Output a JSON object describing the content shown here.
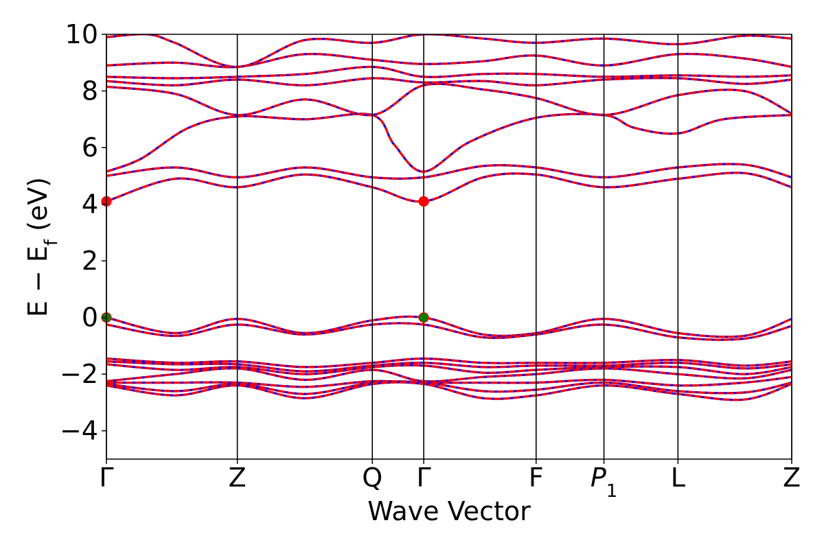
{
  "chart_data": {
    "type": "line",
    "title": "",
    "xlabel": "Wave Vector",
    "ylabel": "E − E_f (eV)",
    "ylabel_parts": {
      "pre": "E − E",
      "sub": "f",
      "post": " (eV)"
    },
    "ylim": [
      -5,
      10
    ],
    "yticks": [
      -4,
      -2,
      0,
      2,
      4,
      6,
      8,
      10
    ],
    "ytick_labels": [
      "−4",
      "−2",
      "0",
      "2",
      "4",
      "6",
      "8",
      "10"
    ],
    "xlim": [
      0,
      1
    ],
    "grid": false,
    "kpoints": [
      {
        "label": "Γ",
        "x": 0.0
      },
      {
        "label": "Z",
        "x": 0.191
      },
      {
        "label": "Q",
        "x": 0.388
      },
      {
        "label": "Γ",
        "x": 0.463
      },
      {
        "label": "F",
        "x": 0.627
      },
      {
        "label": "P",
        "sub": "1",
        "italic": true,
        "x": 0.726
      },
      {
        "label": "L",
        "x": 0.834
      },
      {
        "label": "Z",
        "x": 1.0
      }
    ],
    "colors": {
      "overlay": "#ff0000",
      "base": "#0000ff",
      "vbm_marker": "#008000",
      "cbm_marker": "#ff0000",
      "kline": "#000000"
    },
    "series": [
      {
        "values": [
          [
            0,
            4.1
          ],
          [
            0.1,
            4.9
          ],
          [
            0.191,
            4.6
          ],
          [
            0.29,
            5.05
          ],
          [
            0.388,
            4.6
          ],
          [
            0.463,
            4.1
          ],
          [
            0.55,
            4.95
          ],
          [
            0.627,
            5.05
          ],
          [
            0.726,
            4.6
          ],
          [
            0.834,
            4.9
          ],
          [
            0.93,
            5.1
          ],
          [
            1.0,
            4.6
          ]
        ]
      },
      {
        "values": [
          [
            0,
            5.0
          ],
          [
            0.1,
            5.3
          ],
          [
            0.191,
            4.95
          ],
          [
            0.29,
            5.3
          ],
          [
            0.388,
            4.95
          ],
          [
            0.463,
            4.95
          ],
          [
            0.55,
            5.35
          ],
          [
            0.627,
            5.3
          ],
          [
            0.726,
            4.95
          ],
          [
            0.834,
            5.3
          ],
          [
            0.93,
            5.4
          ],
          [
            1.0,
            4.95
          ]
        ]
      },
      {
        "values": [
          [
            0,
            5.15
          ],
          [
            0.05,
            5.6
          ],
          [
            0.12,
            6.7
          ],
          [
            0.191,
            7.1
          ],
          [
            0.29,
            7.0
          ],
          [
            0.388,
            7.15
          ],
          [
            0.42,
            6.1
          ],
          [
            0.463,
            5.15
          ],
          [
            0.53,
            6.2
          ],
          [
            0.627,
            7.05
          ],
          [
            0.726,
            7.15
          ],
          [
            0.77,
            6.7
          ],
          [
            0.834,
            6.5
          ],
          [
            0.9,
            7.0
          ],
          [
            1.0,
            7.15
          ]
        ]
      },
      {
        "values": [
          [
            0,
            8.15
          ],
          [
            0.1,
            7.9
          ],
          [
            0.191,
            7.15
          ],
          [
            0.29,
            7.7
          ],
          [
            0.388,
            7.15
          ],
          [
            0.463,
            8.2
          ],
          [
            0.55,
            8.05
          ],
          [
            0.627,
            7.75
          ],
          [
            0.726,
            7.15
          ],
          [
            0.834,
            7.85
          ],
          [
            0.93,
            8.0
          ],
          [
            1.0,
            7.2
          ]
        ]
      },
      {
        "values": [
          [
            0,
            8.35
          ],
          [
            0.1,
            8.2
          ],
          [
            0.191,
            8.4
          ],
          [
            0.29,
            8.2
          ],
          [
            0.388,
            8.45
          ],
          [
            0.463,
            8.3
          ],
          [
            0.55,
            8.35
          ],
          [
            0.627,
            8.2
          ],
          [
            0.726,
            8.4
          ],
          [
            0.834,
            8.45
          ],
          [
            0.93,
            8.25
          ],
          [
            1.0,
            8.4
          ]
        ]
      },
      {
        "values": [
          [
            0,
            8.5
          ],
          [
            0.1,
            8.45
          ],
          [
            0.191,
            8.5
          ],
          [
            0.29,
            8.6
          ],
          [
            0.388,
            8.85
          ],
          [
            0.463,
            8.5
          ],
          [
            0.55,
            8.6
          ],
          [
            0.627,
            8.6
          ],
          [
            0.726,
            8.5
          ],
          [
            0.834,
            8.55
          ],
          [
            0.93,
            8.5
          ],
          [
            1.0,
            8.55
          ]
        ]
      },
      {
        "values": [
          [
            0,
            8.9
          ],
          [
            0.1,
            9.0
          ],
          [
            0.191,
            8.85
          ],
          [
            0.29,
            9.3
          ],
          [
            0.388,
            9.1
          ],
          [
            0.463,
            8.95
          ],
          [
            0.55,
            9.05
          ],
          [
            0.627,
            9.25
          ],
          [
            0.726,
            8.9
          ],
          [
            0.834,
            9.3
          ],
          [
            0.93,
            9.15
          ],
          [
            1.0,
            8.85
          ]
        ]
      },
      {
        "values": [
          [
            0,
            9.9
          ],
          [
            0.06,
            10.0
          ],
          [
            0.1,
            9.7
          ],
          [
            0.191,
            8.85
          ],
          [
            0.29,
            9.8
          ],
          [
            0.388,
            9.7
          ],
          [
            0.463,
            10.0
          ],
          [
            0.55,
            9.85
          ],
          [
            0.627,
            9.7
          ],
          [
            0.726,
            9.85
          ],
          [
            0.834,
            9.65
          ],
          [
            0.93,
            9.95
          ],
          [
            1.0,
            9.85
          ]
        ]
      },
      {
        "values": [
          [
            0,
            0.0
          ],
          [
            0.1,
            -0.55
          ],
          [
            0.191,
            -0.05
          ],
          [
            0.29,
            -0.55
          ],
          [
            0.388,
            -0.1
          ],
          [
            0.463,
            0.0
          ],
          [
            0.55,
            -0.6
          ],
          [
            0.627,
            -0.55
          ],
          [
            0.726,
            -0.05
          ],
          [
            0.834,
            -0.55
          ],
          [
            0.93,
            -0.65
          ],
          [
            1.0,
            -0.05
          ]
        ]
      },
      {
        "values": [
          [
            0,
            -0.25
          ],
          [
            0.1,
            -0.65
          ],
          [
            0.191,
            -0.25
          ],
          [
            0.29,
            -0.6
          ],
          [
            0.388,
            -0.25
          ],
          [
            0.463,
            -0.25
          ],
          [
            0.55,
            -0.7
          ],
          [
            0.627,
            -0.6
          ],
          [
            0.726,
            -0.25
          ],
          [
            0.834,
            -0.7
          ],
          [
            0.93,
            -0.75
          ],
          [
            1.0,
            -0.3
          ]
        ]
      },
      {
        "values": [
          [
            0,
            -1.45
          ],
          [
            0.1,
            -1.6
          ],
          [
            0.191,
            -1.55
          ],
          [
            0.29,
            -1.75
          ],
          [
            0.388,
            -1.6
          ],
          [
            0.463,
            -1.45
          ],
          [
            0.55,
            -1.6
          ],
          [
            0.627,
            -1.6
          ],
          [
            0.726,
            -1.6
          ],
          [
            0.834,
            -1.5
          ],
          [
            0.93,
            -1.7
          ],
          [
            1.0,
            -1.55
          ]
        ]
      },
      {
        "values": [
          [
            0,
            -1.55
          ],
          [
            0.1,
            -1.65
          ],
          [
            0.191,
            -1.65
          ],
          [
            0.29,
            -1.9
          ],
          [
            0.388,
            -1.7
          ],
          [
            0.463,
            -1.6
          ],
          [
            0.55,
            -1.75
          ],
          [
            0.627,
            -1.7
          ],
          [
            0.726,
            -1.7
          ],
          [
            0.834,
            -1.6
          ],
          [
            0.93,
            -1.8
          ],
          [
            1.0,
            -1.65
          ]
        ]
      },
      {
        "values": [
          [
            0,
            -1.65
          ],
          [
            0.1,
            -1.85
          ],
          [
            0.191,
            -1.75
          ],
          [
            0.29,
            -2.0
          ],
          [
            0.388,
            -1.75
          ],
          [
            0.463,
            -1.7
          ],
          [
            0.55,
            -1.95
          ],
          [
            0.627,
            -1.85
          ],
          [
            0.726,
            -1.75
          ],
          [
            0.834,
            -1.75
          ],
          [
            0.93,
            -2.0
          ],
          [
            1.0,
            -1.75
          ]
        ]
      },
      {
        "values": [
          [
            0,
            -2.25
          ],
          [
            0.1,
            -2.0
          ],
          [
            0.191,
            -1.8
          ],
          [
            0.29,
            -2.2
          ],
          [
            0.388,
            -1.85
          ],
          [
            0.463,
            -2.25
          ],
          [
            0.55,
            -2.1
          ],
          [
            0.627,
            -2.0
          ],
          [
            0.726,
            -1.8
          ],
          [
            0.834,
            -2.0
          ],
          [
            0.93,
            -2.15
          ],
          [
            1.0,
            -1.85
          ]
        ]
      },
      {
        "values": [
          [
            0,
            -2.3
          ],
          [
            0.1,
            -2.3
          ],
          [
            0.191,
            -2.3
          ],
          [
            0.29,
            -2.45
          ],
          [
            0.388,
            -2.25
          ],
          [
            0.463,
            -2.3
          ],
          [
            0.55,
            -2.3
          ],
          [
            0.627,
            -2.3
          ],
          [
            0.726,
            -2.2
          ],
          [
            0.834,
            -2.4
          ],
          [
            0.93,
            -2.3
          ],
          [
            1.0,
            -2.1
          ]
        ]
      },
      {
        "values": [
          [
            0,
            -2.35
          ],
          [
            0.1,
            -2.6
          ],
          [
            0.191,
            -2.35
          ],
          [
            0.29,
            -2.7
          ],
          [
            0.388,
            -2.3
          ],
          [
            0.463,
            -2.3
          ],
          [
            0.55,
            -2.6
          ],
          [
            0.627,
            -2.55
          ],
          [
            0.726,
            -2.3
          ],
          [
            0.834,
            -2.6
          ],
          [
            0.93,
            -2.65
          ],
          [
            1.0,
            -2.3
          ]
        ]
      },
      {
        "values": [
          [
            0,
            -2.4
          ],
          [
            0.1,
            -2.75
          ],
          [
            0.191,
            -2.4
          ],
          [
            0.29,
            -2.85
          ],
          [
            0.388,
            -2.35
          ],
          [
            0.463,
            -2.35
          ],
          [
            0.55,
            -2.85
          ],
          [
            0.627,
            -2.75
          ],
          [
            0.726,
            -2.4
          ],
          [
            0.834,
            -2.7
          ],
          [
            0.93,
            -2.9
          ],
          [
            1.0,
            -2.35
          ]
        ]
      }
    ],
    "markers": [
      {
        "x": 0.0,
        "y": 4.1,
        "kind": "cbm"
      },
      {
        "x": 0.463,
        "y": 4.1,
        "kind": "cbm"
      },
      {
        "x": 0.0,
        "y": 0.0,
        "kind": "vbm"
      },
      {
        "x": 0.463,
        "y": 0.0,
        "kind": "vbm"
      }
    ]
  }
}
